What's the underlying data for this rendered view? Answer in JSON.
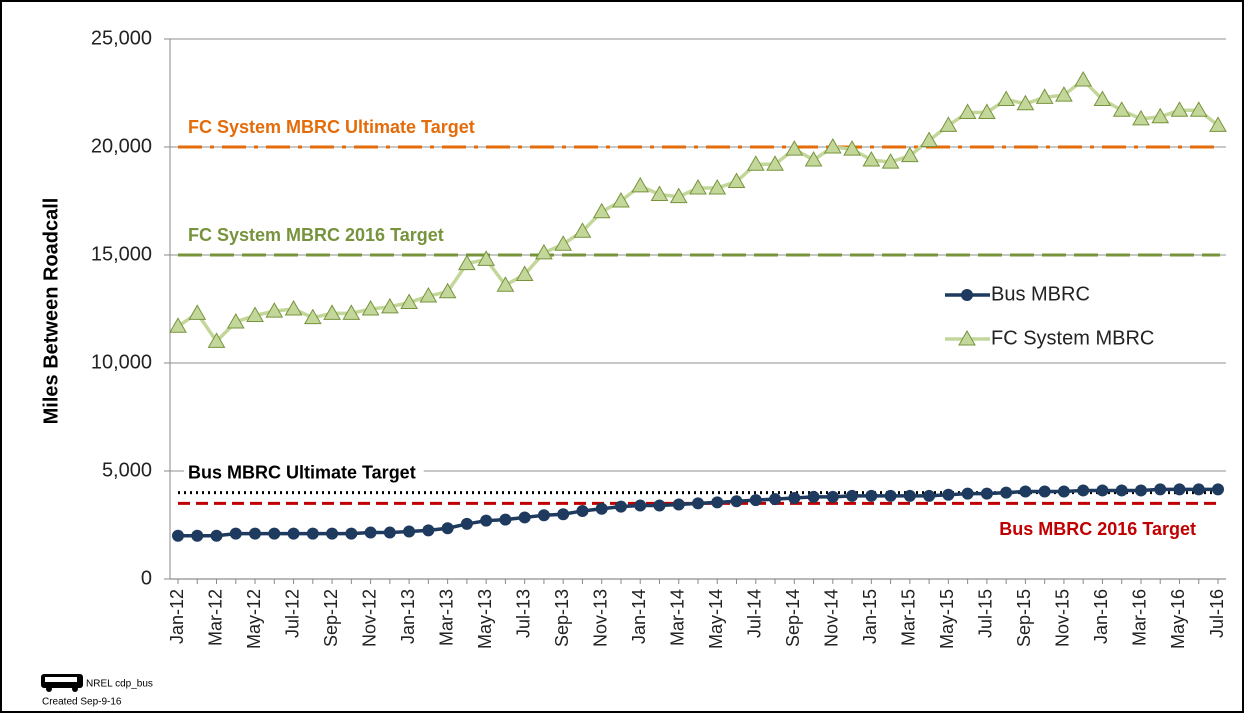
{
  "chart_data": {
    "type": "line",
    "y_label": "Miles Between Roadcall",
    "categories": [
      "Jan-12",
      null,
      "Mar-12",
      null,
      "May-12",
      null,
      "Jul-12",
      null,
      "Sep-12",
      null,
      "Nov-12",
      null,
      "Jan-13",
      null,
      "Mar-13",
      null,
      "May-13",
      null,
      "Jul-13",
      null,
      "Sep-13",
      null,
      "Nov-13",
      null,
      "Jan-14",
      null,
      "Mar-14",
      null,
      "May-14",
      null,
      "Jul-14",
      null,
      "Sep-14",
      null,
      "Nov-14",
      null,
      "Jan-15",
      null,
      "Mar-15",
      null,
      "May-15",
      null,
      "Jul-15",
      null,
      "Sep-15",
      null,
      "Nov-15",
      null,
      "Jan-16",
      null,
      "Mar-16",
      null,
      "May-16",
      null,
      "Jul-16"
    ],
    "series": [
      {
        "name": "Bus MBRC",
        "color": "#1f3a5f",
        "marker": "circle",
        "values": [
          2000,
          2000,
          2000,
          2100,
          2100,
          2100,
          2100,
          2100,
          2100,
          2100,
          2150,
          2150,
          2200,
          2250,
          2350,
          2550,
          2700,
          2750,
          2850,
          2950,
          3000,
          3150,
          3250,
          3350,
          3400,
          3400,
          3450,
          3500,
          3550,
          3600,
          3650,
          3700,
          3750,
          3800,
          3800,
          3850,
          3850,
          3850,
          3850,
          3850,
          3900,
          3950,
          3950,
          4000,
          4050,
          4050,
          4050,
          4100,
          4100,
          4100,
          4100,
          4150,
          4150,
          4150,
          4150
        ]
      },
      {
        "name": "FC System MBRC",
        "color": "#c4d79b",
        "marker_edge": "#77933c",
        "marker": "triangle",
        "values": [
          11700,
          12300,
          11000,
          11900,
          12200,
          12400,
          12500,
          12100,
          12300,
          12300,
          12500,
          12600,
          12800,
          13100,
          13300,
          14600,
          14800,
          13600,
          14100,
          15100,
          15500,
          16100,
          17000,
          17500,
          18200,
          17800,
          17700,
          18100,
          18100,
          18400,
          19200,
          19200,
          19900,
          19400,
          20000,
          19900,
          19400,
          19300,
          19600,
          20300,
          21000,
          21600,
          21600,
          22200,
          22000,
          22300,
          22400,
          23100,
          22200,
          21700,
          21300,
          21400,
          21700,
          21700,
          21000
        ]
      }
    ],
    "targets": [
      {
        "label": "FC System MBRC Ultimate Target",
        "value": 20000,
        "color": "#e46c0a",
        "dash": "24 8 4 8",
        "label_side": "above",
        "label_align": "left"
      },
      {
        "label": "FC System MBRC 2016 Target",
        "value": 15000,
        "color": "#77933c",
        "dash": "24 8",
        "label_side": "above",
        "label_align": "left"
      },
      {
        "label": "Bus MBRC Ultimate Target",
        "value": 4000,
        "color": "#000000",
        "dash": "2 4",
        "label_side": "above",
        "label_align": "left"
      },
      {
        "label": "Bus MBRC 2016 Target",
        "value": 3500,
        "color": "#c00000",
        "dash": "12 6",
        "label_side": "below",
        "label_align": "right"
      }
    ],
    "ylim": [
      0,
      25000
    ],
    "yticks": [
      0,
      {
        "value": 5000,
        "label": "5,000"
      },
      {
        "value": 10000,
        "label": "10,000"
      },
      {
        "value": 15000,
        "label": "15,000"
      },
      {
        "value": 20000,
        "label": "20,000"
      },
      {
        "value": 25000,
        "label": "25,000"
      }
    ],
    "grid": true,
    "legend": "right",
    "footer": [
      "NREL cdp_bus",
      "Created Sep-9-16"
    ]
  }
}
